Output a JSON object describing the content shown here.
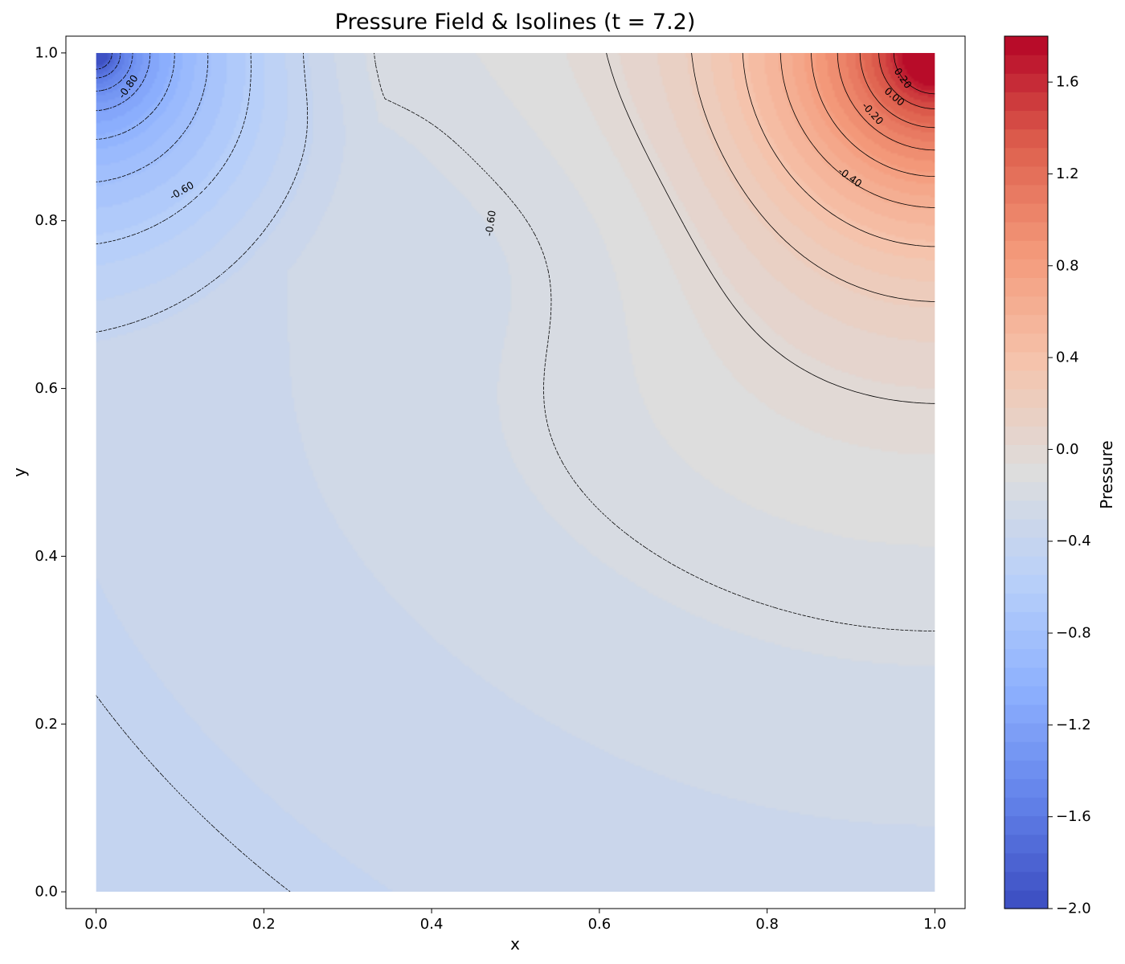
{
  "chart_data": {
    "type": "heatmap",
    "subtype": "filled-contour-with-isolines",
    "title": "Pressure Field & Isolines (t = 7.2)",
    "xlabel": "x",
    "ylabel": "y",
    "xlim": [
      -0.036,
      1.036
    ],
    "ylim": [
      -0.02,
      1.02
    ],
    "xticks": [
      0.0,
      0.2,
      0.4,
      0.6,
      0.8,
      1.0
    ],
    "yticks": [
      0.0,
      0.2,
      0.4,
      0.6,
      0.8,
      1.0
    ],
    "xtick_labels": [
      "0.0",
      "0.2",
      "0.4",
      "0.6",
      "0.8",
      "1.0"
    ],
    "ytick_labels": [
      "0.0",
      "0.2",
      "0.4",
      "0.6",
      "0.8",
      "1.0"
    ],
    "grid": false,
    "colormap": "coolwarm",
    "colorbar": {
      "label": "Pressure",
      "range": [
        -2.0,
        1.8
      ],
      "ticks": [
        -2.0,
        -1.6,
        -1.2,
        -0.8,
        -0.4,
        0.0,
        0.4,
        0.8,
        1.2,
        1.6
      ],
      "tick_labels": [
        "−2.0",
        "−1.6",
        "−1.2",
        "−0.8",
        "−0.4",
        "0.0",
        "0.4",
        "0.8",
        "1.2",
        "1.6"
      ],
      "levels": 47
    },
    "field_features": [
      {
        "kind": "high",
        "x": 1.0,
        "y": 1.0,
        "peak": 1.8
      },
      {
        "kind": "low",
        "x": 0.0,
        "y": 1.0,
        "peak": -2.0
      },
      {
        "kind": "background",
        "bottom_value": -0.55,
        "basin_value": -0.62
      }
    ],
    "isoline_labels": [
      {
        "text": "-0.80",
        "x": 0.038,
        "y": 0.96,
        "rot": -55
      },
      {
        "text": "-0.60",
        "x": 0.102,
        "y": 0.836,
        "rot": -30
      },
      {
        "text": "-0.60",
        "x": 0.47,
        "y": 0.797,
        "rot": -82
      },
      {
        "text": "0.20",
        "x": 0.962,
        "y": 0.97,
        "rot": 55
      },
      {
        "text": "0.00",
        "x": 0.952,
        "y": 0.948,
        "rot": 40
      },
      {
        "text": "-0.20",
        "x": 0.926,
        "y": 0.928,
        "rot": 48
      },
      {
        "text": "-0.40",
        "x": 0.899,
        "y": 0.852,
        "rot": 35
      }
    ]
  }
}
